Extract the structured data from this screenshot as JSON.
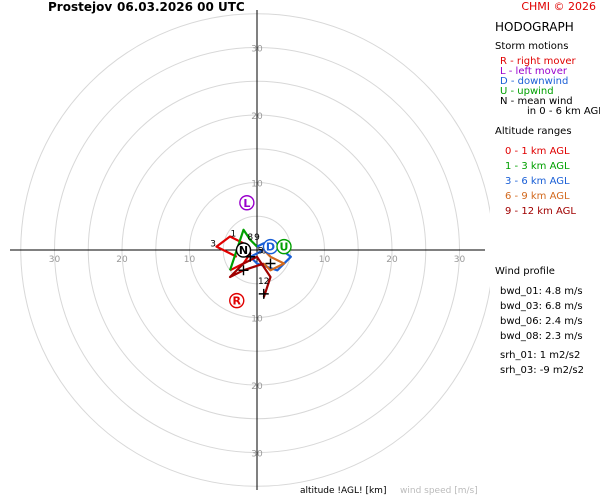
{
  "header": {
    "station": "Prostejov",
    "datetime": "06.03.2026 00 UTC",
    "copyright": "CHMI © 2026"
  },
  "legend": {
    "title": "HODOGRAPH",
    "storm_heading": "Storm motions",
    "storm_items": [
      {
        "text": "R - right mover",
        "color": "#e00000"
      },
      {
        "text": "L - left mover",
        "color": "#9900cc"
      },
      {
        "text": "D - downwind",
        "color": "#1a5fd6"
      },
      {
        "text": "U - upwind",
        "color": "#00a000"
      },
      {
        "text": "N - mean wind",
        "color": "#000000"
      },
      {
        "text": "in 0 - 6 km AGL",
        "color": "#000000"
      }
    ],
    "alt_heading": "Altitude ranges",
    "alt_items": [
      {
        "text": "0 - 1 km AGL",
        "color": "#e00000"
      },
      {
        "text": "1 - 3 km AGL",
        "color": "#00a000"
      },
      {
        "text": "3 - 6 km AGL",
        "color": "#1a5fd6"
      },
      {
        "text": "6 - 9 km AGL",
        "color": "#d2691e"
      },
      {
        "text": "9 - 12 km AGL",
        "color": "#a00000"
      }
    ],
    "wind_heading": "Wind profile",
    "wind_items": [
      "bwd_01: 4.8 m/s",
      "bwd_03: 6.8 m/s",
      "bwd_06: 2.4 m/s",
      "bwd_08: 2.3 m/s"
    ],
    "srh_items": [
      "srh_01: 1 m2/s2",
      "srh_03: -9 m2/s2"
    ]
  },
  "footer": {
    "altitude_label": "altitude !AGL! [km]",
    "speed_label": "wind speed [m/s]"
  },
  "chart_data": {
    "type": "hodograph",
    "rings": [
      5,
      10,
      15,
      20,
      25,
      30,
      35
    ],
    "ring_labels": [
      "10",
      "20",
      "30"
    ],
    "segments": [
      {
        "name": "0 - 1 km AGL",
        "color": "#e00000",
        "points": [
          [
            -3,
            -1
          ],
          [
            -6,
            0.5
          ],
          [
            -4,
            2
          ],
          [
            -2,
            1
          ],
          [
            -1,
            -0.5
          ],
          [
            -2,
            -2
          ],
          [
            -4,
            -3
          ]
        ]
      },
      {
        "name": "1 - 3 km AGL",
        "color": "#00a000",
        "points": [
          [
            -4,
            -3
          ],
          [
            -3,
            0
          ],
          [
            -2,
            3
          ],
          [
            -1,
            1.5
          ],
          [
            0,
            0.5
          ]
        ]
      },
      {
        "name": "3 - 6 km AGL",
        "color": "#1a5fd6",
        "points": [
          [
            0,
            0.5
          ],
          [
            1,
            1
          ],
          [
            3,
            0.5
          ],
          [
            5,
            -1
          ],
          [
            3,
            -3
          ],
          [
            0,
            -2
          ],
          [
            -1,
            -1
          ],
          [
            1,
            0
          ]
        ]
      },
      {
        "name": "6 - 9 km AGL",
        "color": "#d2691e",
        "points": [
          [
            1,
            0
          ],
          [
            2,
            -1
          ],
          [
            4,
            -2
          ],
          [
            2,
            -3
          ],
          [
            1,
            -2
          ]
        ]
      },
      {
        "name": "9 - 12 km AGL",
        "color": "#a00000",
        "points": [
          [
            1,
            -2
          ],
          [
            -2,
            -3
          ],
          [
            -4,
            -4
          ],
          [
            -2,
            -2
          ],
          [
            0,
            -1
          ],
          [
            2,
            -4
          ],
          [
            1,
            -7
          ]
        ]
      }
    ],
    "level_labels": [
      {
        "text": "3",
        "pos": [
          -6.5,
          0.5
        ]
      },
      {
        "text": "1",
        "pos": [
          -3.5,
          2
        ]
      },
      {
        "text": "8",
        "pos": [
          -1,
          1.5
        ]
      },
      {
        "text": "9",
        "pos": [
          0,
          1.5
        ]
      },
      {
        "text": "5",
        "pos": [
          0.5,
          -0.5
        ]
      },
      {
        "text": "6",
        "pos": [
          1,
          -0.5
        ]
      },
      {
        "text": "12",
        "pos": [
          1,
          -5
        ]
      }
    ],
    "storm_motions": [
      {
        "letter": "R",
        "pos": [
          -3,
          -7.5
        ],
        "color": "#e00000"
      },
      {
        "letter": "L",
        "pos": [
          -1.5,
          7
        ],
        "color": "#9900cc"
      },
      {
        "letter": "D",
        "pos": [
          2,
          0.5
        ],
        "color": "#1a5fd6"
      },
      {
        "letter": "U",
        "pos": [
          4,
          0.5
        ],
        "color": "#00a000"
      },
      {
        "letter": "N",
        "pos": [
          -2,
          0
        ],
        "color": "#000000"
      }
    ],
    "crosses": [
      [
        -1,
        -1
      ],
      [
        1,
        -6.5
      ],
      [
        -2,
        -3
      ],
      [
        2,
        -2
      ]
    ],
    "xlabel": "",
    "ylabel": ""
  }
}
